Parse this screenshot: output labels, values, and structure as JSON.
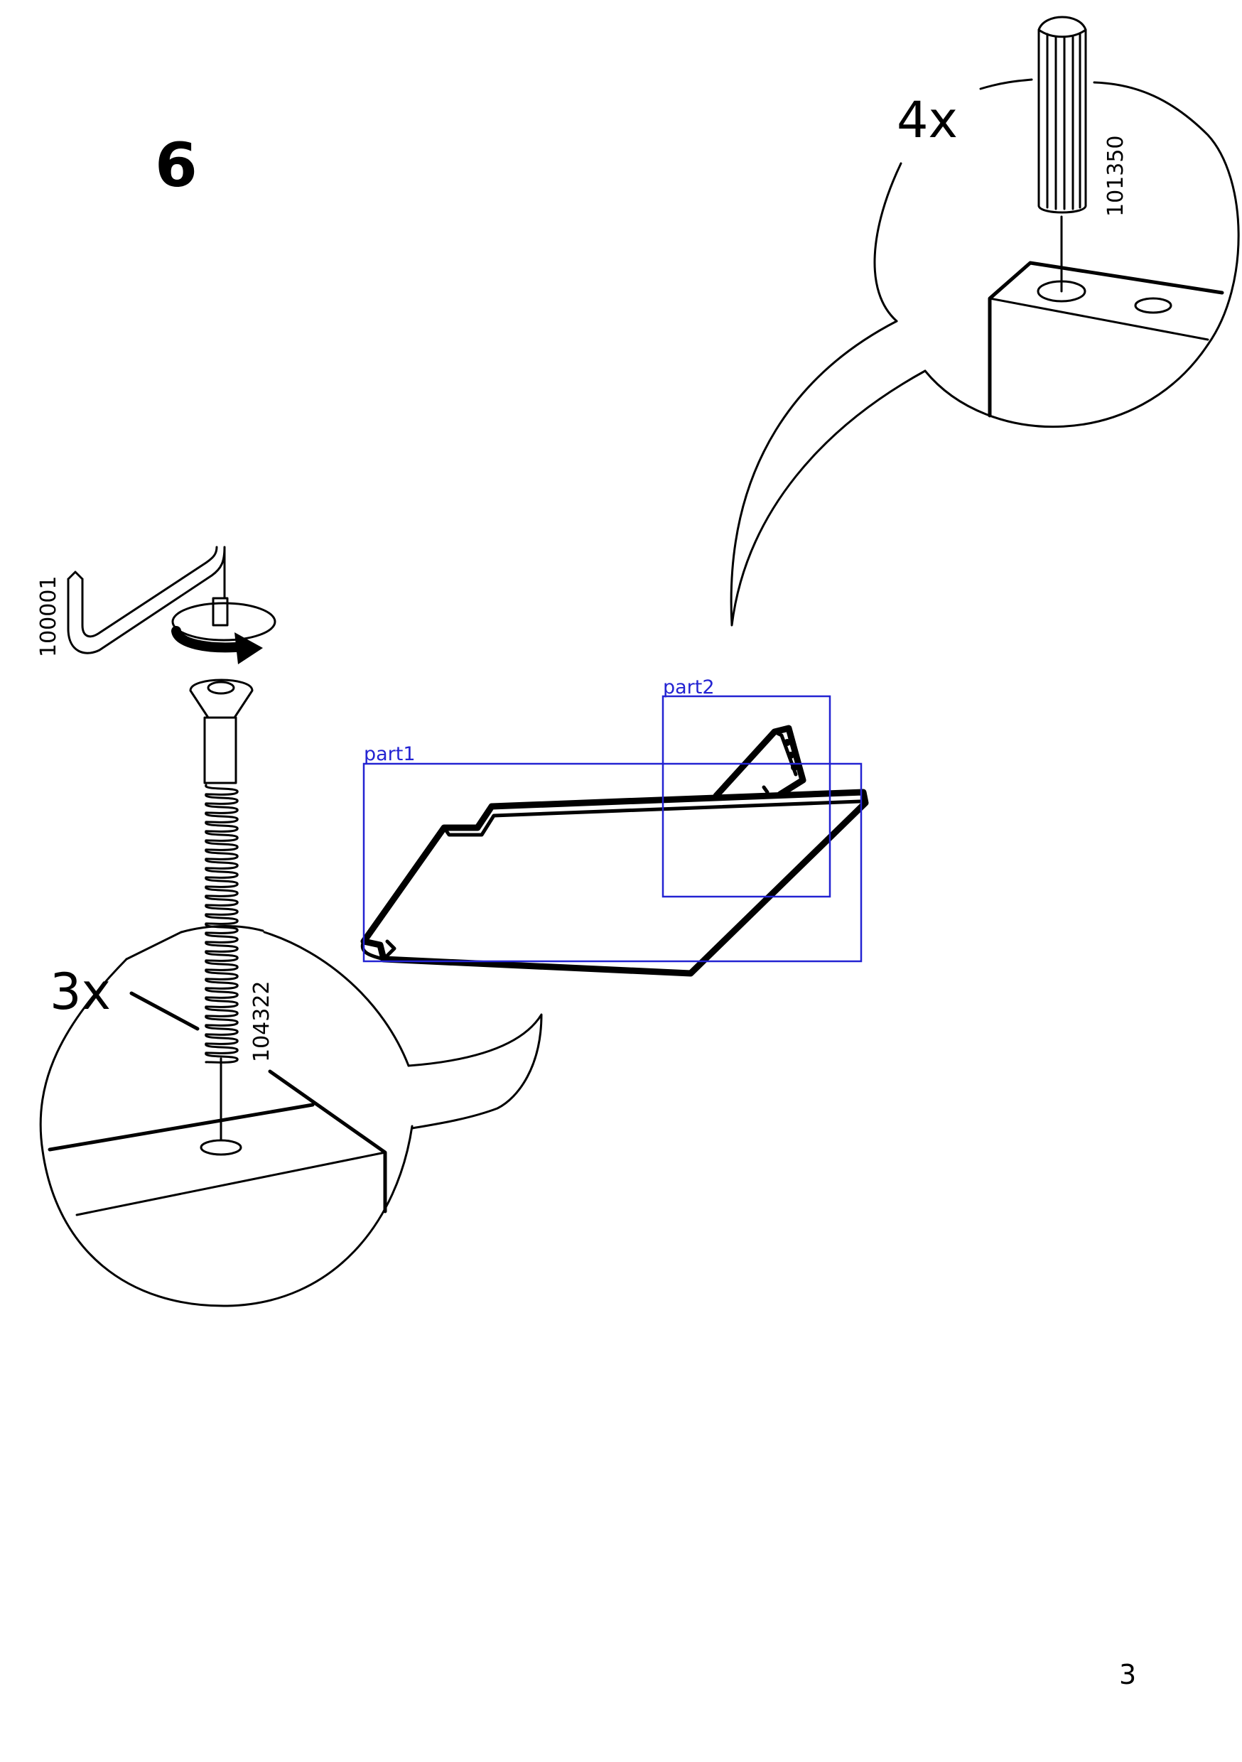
{
  "step": {
    "number": "6"
  },
  "page": {
    "number": "3"
  },
  "callouts": {
    "dowel": {
      "quantity": "4x",
      "part_number": "101350"
    },
    "screw": {
      "quantity": "3x",
      "part_number": "104322"
    },
    "allen_key": {
      "part_number": "100001"
    }
  },
  "annotations": {
    "color": "#2323d2",
    "boxes": [
      {
        "label": "part1"
      },
      {
        "label": "part2"
      }
    ]
  }
}
